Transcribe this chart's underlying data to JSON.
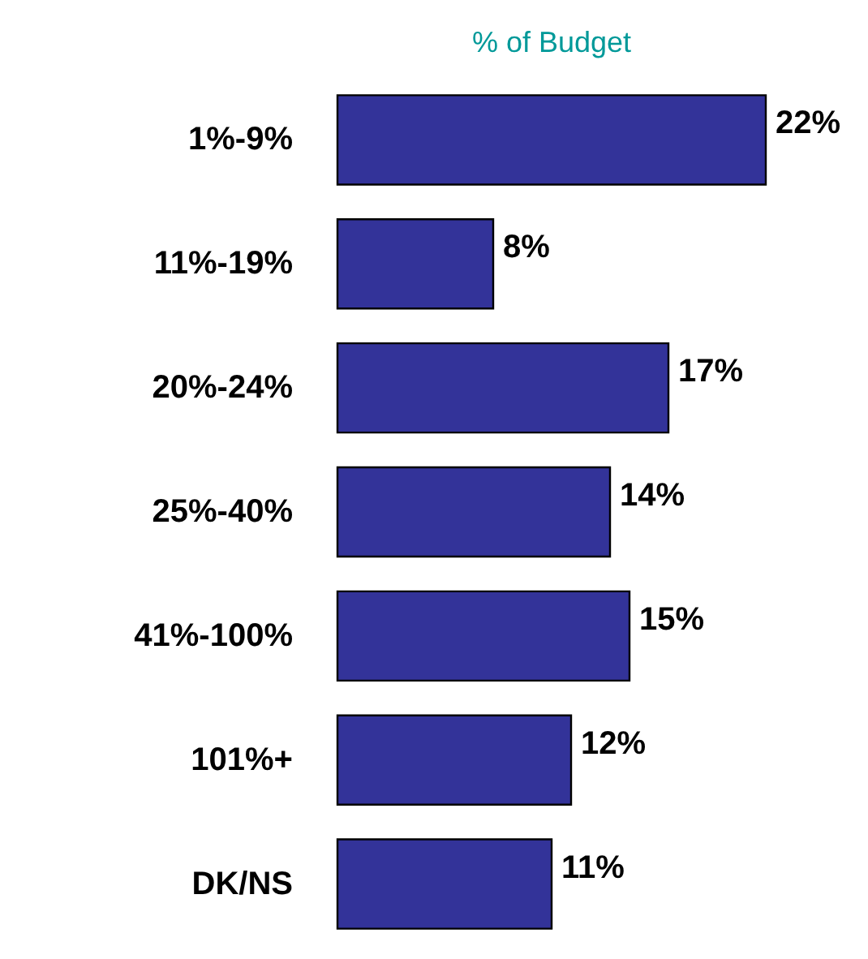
{
  "chart_data": {
    "type": "bar",
    "orientation": "horizontal",
    "title": "% of Budget",
    "categories": [
      "1%-9%",
      "11%-19%",
      "20%-24%",
      "25%-40%",
      "41%-100%",
      "101%+",
      "DK/NS"
    ],
    "values": [
      22,
      8,
      17,
      14,
      15,
      12,
      11
    ],
    "value_labels": [
      "22%",
      "8%",
      "17%",
      "14%",
      "15%",
      "12%",
      "11%"
    ],
    "color": "#333399",
    "grid": false
  }
}
